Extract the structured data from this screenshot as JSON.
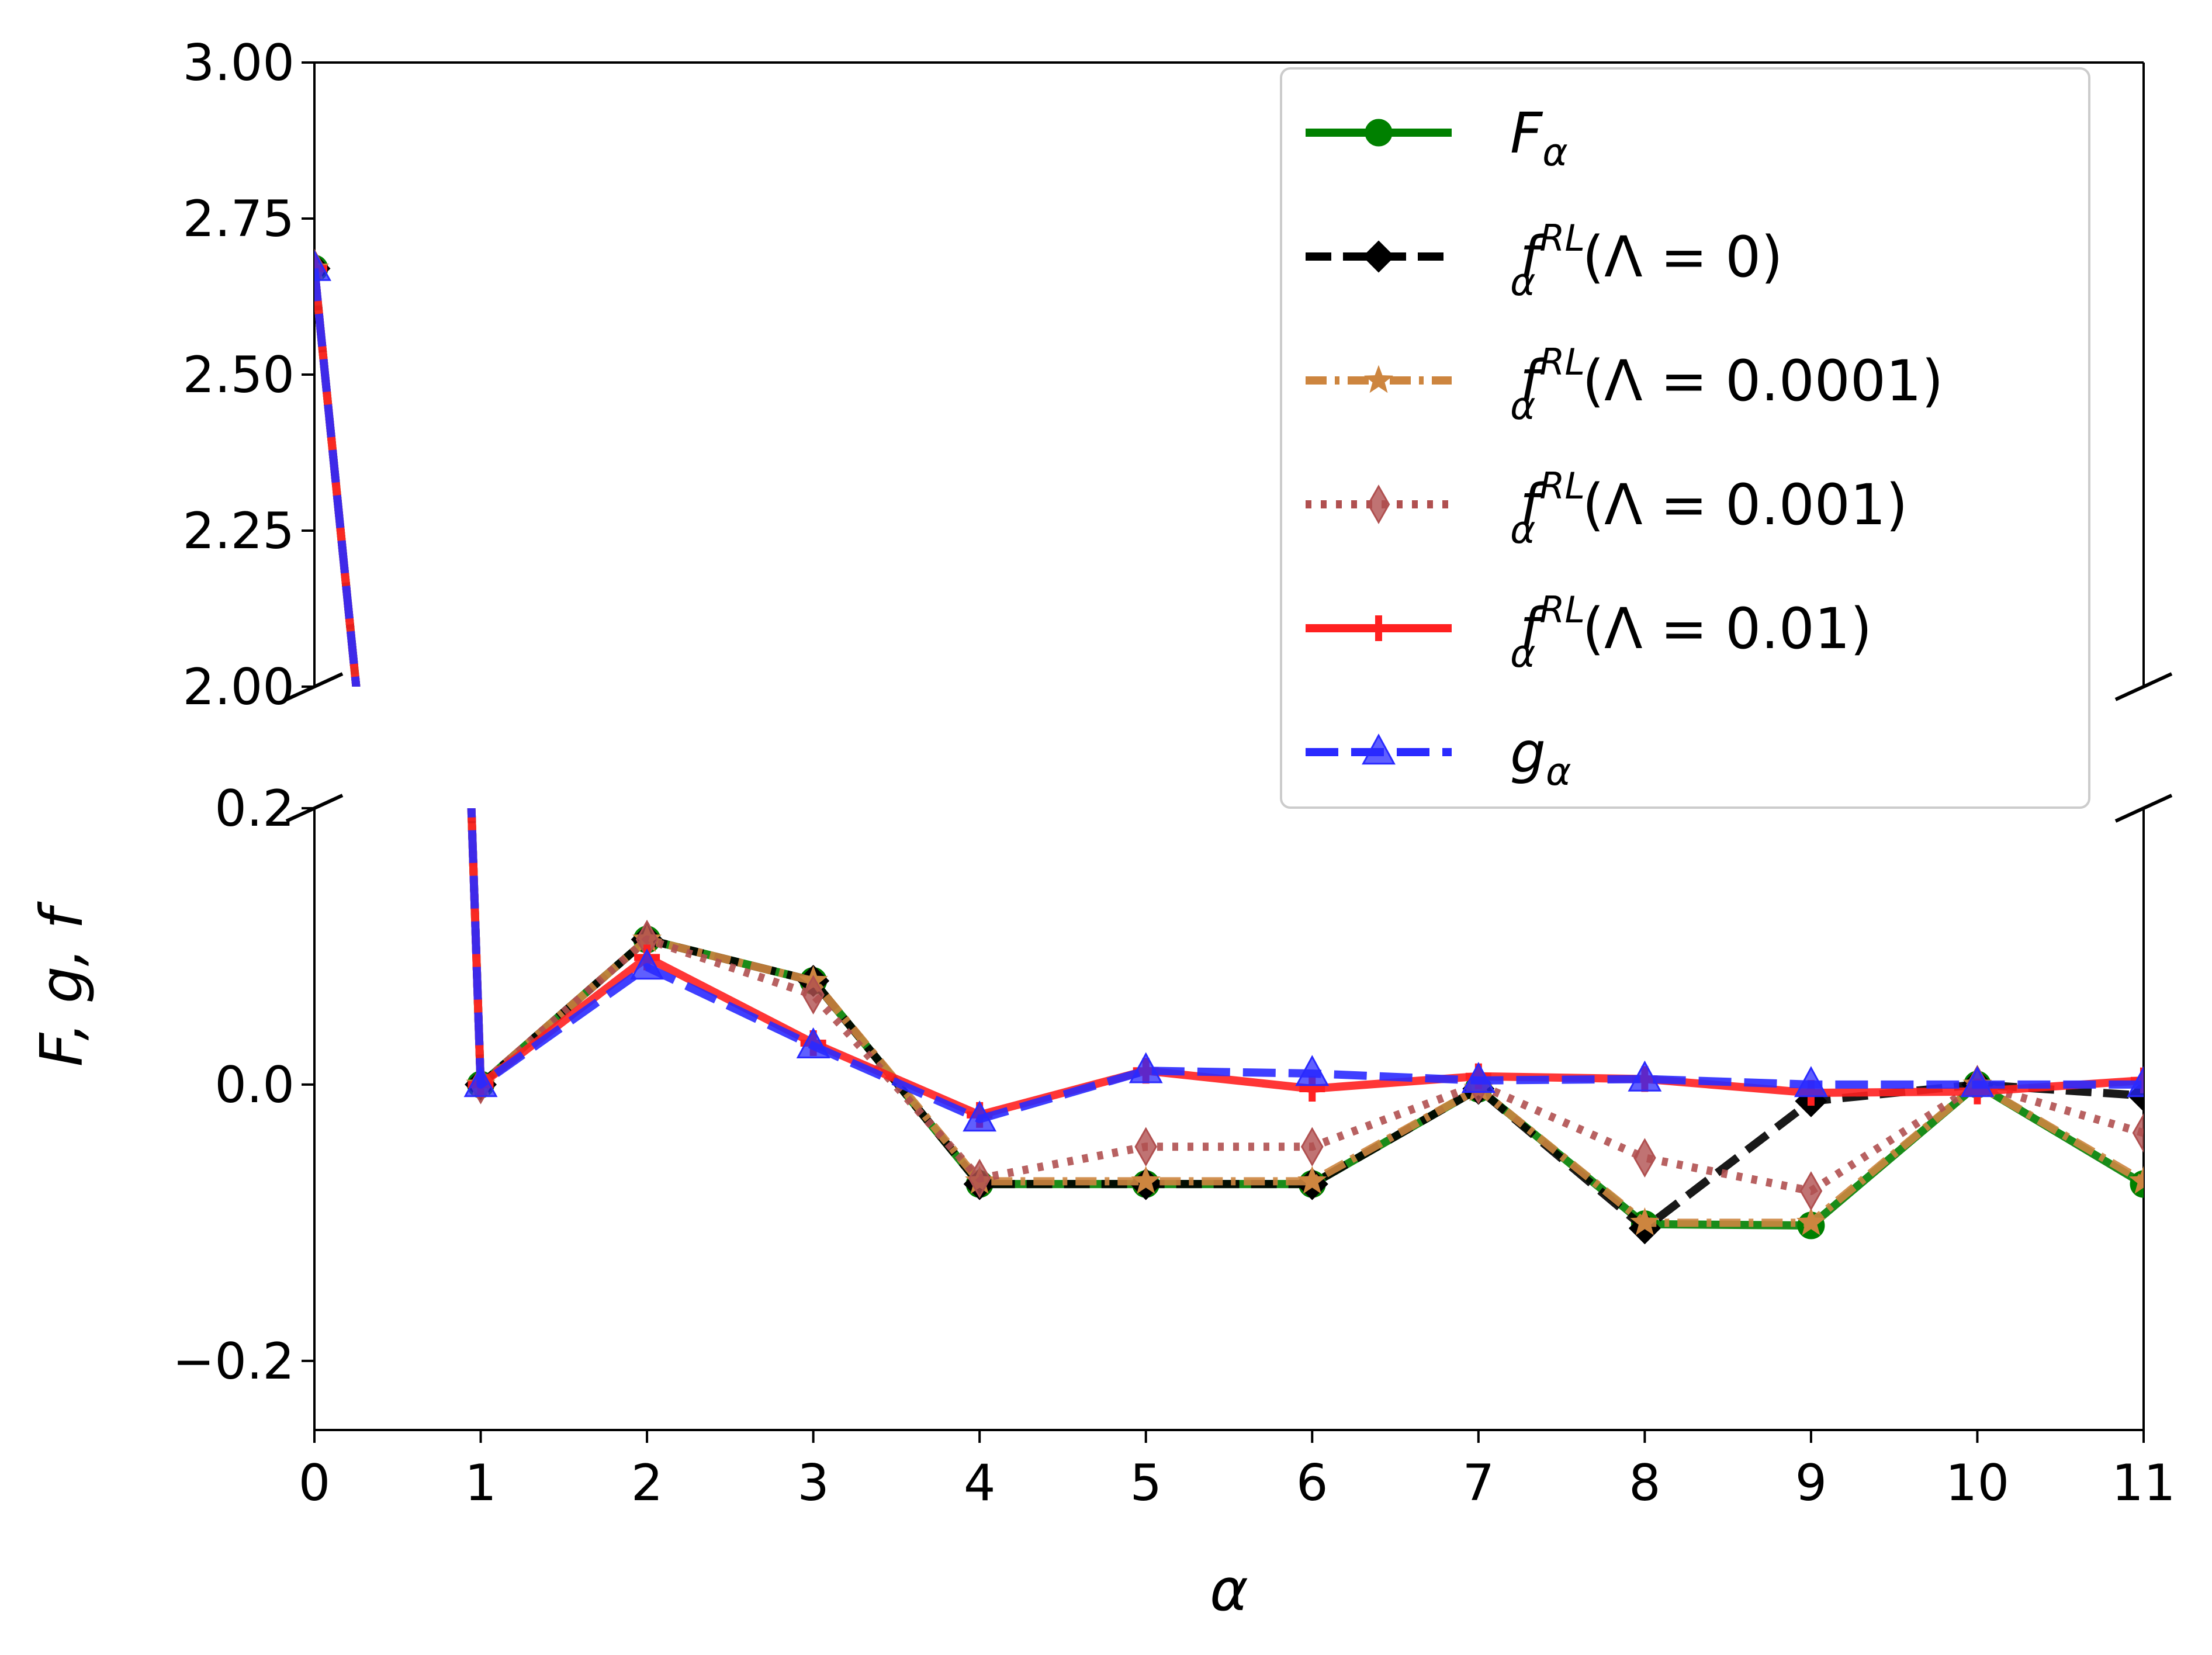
{
  "chart_data": {
    "type": "line",
    "title": "",
    "xlabel": "α",
    "ylabel": "F, g, f",
    "xlim": [
      0,
      11
    ],
    "broken_y_axis": true,
    "top_panel": {
      "ylim": [
        2.0,
        3.0
      ],
      "yticks": [
        "3.00",
        "2.75",
        "2.50",
        "2.25",
        "2.00"
      ]
    },
    "bottom_panel": {
      "ylim": [
        -0.25,
        0.2
      ],
      "yticks": [
        "0.2",
        "0.0",
        "−0.2"
      ]
    },
    "xticks": [
      "0",
      "1",
      "2",
      "3",
      "4",
      "5",
      "6",
      "7",
      "8",
      "9",
      "10",
      "11"
    ],
    "x": [
      0,
      1,
      2,
      3,
      4,
      5,
      6,
      7,
      8,
      9,
      10,
      11
    ],
    "legend_position": "top-right",
    "series": [
      {
        "name": "F_α",
        "label_main": "F",
        "label_sub": "α",
        "label_sup": "",
        "label_paren": "",
        "color": "#008000",
        "linestyle": "solid",
        "marker": "circle",
        "values": [
          2.67,
          0.0,
          0.105,
          0.075,
          -0.072,
          -0.072,
          -0.072,
          -0.003,
          -0.101,
          -0.102,
          0.0,
          -0.072
        ]
      },
      {
        "name": "f_α^RL(Λ = 0)",
        "label_main": "f",
        "label_sub": "α",
        "label_sup": "RL",
        "label_paren": "(Λ = 0)",
        "color": "#000000",
        "linestyle": "dashed",
        "marker": "diamond",
        "values": [
          2.67,
          0.0,
          0.105,
          0.075,
          -0.072,
          -0.072,
          -0.072,
          -0.003,
          -0.104,
          -0.012,
          0.0,
          -0.008
        ]
      },
      {
        "name": "f_α^RL(Λ = 0.0001)",
        "label_main": "f",
        "label_sub": "α",
        "label_sup": "RL",
        "label_paren": "(Λ = 0.0001)",
        "color": "#cd853f",
        "linestyle": "dashdot",
        "marker": "star",
        "values": [
          2.67,
          0.0,
          0.105,
          0.075,
          -0.07,
          -0.07,
          -0.07,
          -0.003,
          -0.1,
          -0.1,
          0.0,
          -0.07
        ]
      },
      {
        "name": "f_α^RL(Λ = 0.001)",
        "label_main": "f",
        "label_sub": "α",
        "label_sup": "RL",
        "label_paren": "(Λ = 0.001)",
        "color": "#b05050",
        "linestyle": "dotted",
        "marker": "thin_diamond",
        "values": [
          2.67,
          0.0,
          0.105,
          0.065,
          -0.068,
          -0.045,
          -0.045,
          0.0,
          -0.053,
          -0.077,
          0.0,
          -0.035
        ]
      },
      {
        "name": "f_α^RL(Λ = 0.01)",
        "label_main": "f",
        "label_sub": "α",
        "label_sup": "RL",
        "label_paren": "(Λ = 0.01)",
        "color": "#ff2020",
        "linestyle": "solid",
        "marker": "plus",
        "values": [
          2.67,
          0.0,
          0.092,
          0.03,
          -0.022,
          0.01,
          -0.003,
          0.006,
          0.004,
          -0.006,
          -0.005,
          0.003
        ]
      },
      {
        "name": "g_α",
        "label_main": "g",
        "label_sub": "α",
        "label_sup": "",
        "label_paren": "",
        "color": "#2a2aff",
        "linestyle": "longdash",
        "marker": "triangle",
        "values": [
          2.67,
          0.0,
          0.085,
          0.028,
          -0.025,
          0.01,
          0.008,
          0.003,
          0.004,
          0.0,
          0.0,
          0.0
        ]
      }
    ]
  }
}
